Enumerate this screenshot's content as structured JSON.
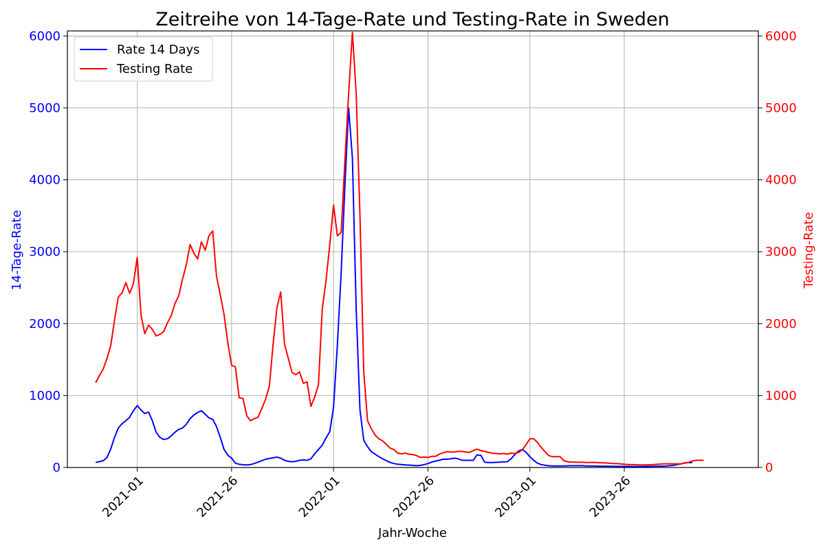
{
  "chart_data": {
    "type": "line",
    "title": "Zeitreihe von 14-Tage-Rate und Testing-Rate in Sweden",
    "xlabel": "Jahr-Woche",
    "ylabel_left": "14-Tage-Rate",
    "ylabel_right": "Testing-Rate",
    "x_ticks": [
      {
        "label": "2021-01",
        "week": 11
      },
      {
        "label": "2021-26",
        "week": 36
      },
      {
        "label": "2022-01",
        "week": 63
      },
      {
        "label": "2022-26",
        "week": 88
      },
      {
        "label": "2023-01",
        "week": 115
      },
      {
        "label": "2023-26",
        "week": 140
      }
    ],
    "xlim": [
      -7.5,
      175.5
    ],
    "ylim_left": [
      0,
      6070
    ],
    "ylim_right": [
      0,
      6070
    ],
    "y_ticks_left": [
      0,
      1000,
      2000,
      3000,
      4000,
      5000,
      6000
    ],
    "y_ticks_right": [
      0,
      1000,
      2000,
      3000,
      4000,
      5000,
      6000
    ],
    "grid": true,
    "legend_position": "upper-left",
    "colors": {
      "left_axis": "#0000ff",
      "right_axis": "#ff0000"
    },
    "series": [
      {
        "name": "Rate 14 Days",
        "axis": "left",
        "color": "#0000ff",
        "points": [
          [
            0,
            70
          ],
          [
            2,
            95
          ],
          [
            3,
            140
          ],
          [
            4,
            260
          ],
          [
            5,
            420
          ],
          [
            6,
            550
          ],
          [
            7,
            610
          ],
          [
            8,
            650
          ],
          [
            9,
            700
          ],
          [
            10,
            790
          ],
          [
            11,
            860
          ],
          [
            12,
            800
          ],
          [
            13,
            750
          ],
          [
            14,
            770
          ],
          [
            15,
            650
          ],
          [
            16,
            490
          ],
          [
            17,
            420
          ],
          [
            18,
            390
          ],
          [
            19,
            400
          ],
          [
            20,
            440
          ],
          [
            21,
            490
          ],
          [
            22,
            530
          ],
          [
            23,
            550
          ],
          [
            24,
            600
          ],
          [
            25,
            680
          ],
          [
            26,
            730
          ],
          [
            27,
            765
          ],
          [
            28,
            790
          ],
          [
            29,
            740
          ],
          [
            30,
            690
          ],
          [
            31,
            670
          ],
          [
            32,
            570
          ],
          [
            33,
            420
          ],
          [
            34,
            250
          ],
          [
            35,
            170
          ],
          [
            36,
            130
          ],
          [
            37,
            60
          ],
          [
            38,
            45
          ],
          [
            39,
            38
          ],
          [
            40,
            35
          ],
          [
            41,
            40
          ],
          [
            42,
            55
          ],
          [
            43,
            75
          ],
          [
            44,
            95
          ],
          [
            45,
            115
          ],
          [
            46,
            125
          ],
          [
            47,
            135
          ],
          [
            48,
            145
          ],
          [
            49,
            130
          ],
          [
            50,
            100
          ],
          [
            51,
            85
          ],
          [
            52,
            80
          ],
          [
            53,
            85
          ],
          [
            54,
            100
          ],
          [
            55,
            105
          ],
          [
            56,
            100
          ],
          [
            57,
            120
          ],
          [
            58,
            190
          ],
          [
            59,
            250
          ],
          [
            60,
            310
          ],
          [
            61,
            410
          ],
          [
            62,
            500
          ],
          [
            63,
            840
          ],
          [
            64,
            1700
          ],
          [
            65,
            2700
          ],
          [
            66,
            3900
          ],
          [
            67,
            5000
          ],
          [
            68,
            4300
          ],
          [
            69,
            2200
          ],
          [
            70,
            800
          ],
          [
            71,
            380
          ],
          [
            72,
            290
          ],
          [
            73,
            220
          ],
          [
            74,
            185
          ],
          [
            75,
            150
          ],
          [
            76,
            120
          ],
          [
            77,
            95
          ],
          [
            78,
            70
          ],
          [
            79,
            55
          ],
          [
            80,
            45
          ],
          [
            81,
            40
          ],
          [
            82,
            35
          ],
          [
            83,
            33
          ],
          [
            84,
            30
          ],
          [
            85,
            25
          ],
          [
            86,
            30
          ],
          [
            87,
            40
          ],
          [
            88,
            55
          ],
          [
            89,
            75
          ],
          [
            90,
            90
          ],
          [
            91,
            100
          ],
          [
            92,
            115
          ],
          [
            93,
            115
          ],
          [
            94,
            120
          ],
          [
            95,
            130
          ],
          [
            96,
            120
          ],
          [
            97,
            100
          ],
          [
            98,
            100
          ],
          [
            99,
            100
          ],
          [
            100,
            100
          ],
          [
            101,
            175
          ],
          [
            102,
            170
          ],
          [
            103,
            75
          ],
          [
            104,
            70
          ],
          [
            105,
            70
          ],
          [
            106,
            72
          ],
          [
            107,
            75
          ],
          [
            108,
            78
          ],
          [
            109,
            80
          ],
          [
            110,
            120
          ],
          [
            111,
            180
          ],
          [
            112,
            230
          ],
          [
            113,
            250
          ],
          [
            114,
            210
          ],
          [
            115,
            150
          ],
          [
            116,
            100
          ],
          [
            117,
            60
          ],
          [
            118,
            40
          ],
          [
            119,
            32
          ],
          [
            120,
            25
          ],
          [
            121,
            22
          ],
          [
            122,
            22
          ],
          [
            123,
            22
          ],
          [
            124,
            22
          ],
          [
            125,
            24
          ],
          [
            126,
            25
          ],
          [
            127,
            25
          ],
          [
            128,
            27
          ],
          [
            129,
            25
          ],
          [
            130,
            22
          ],
          [
            131,
            20
          ],
          [
            132,
            20
          ],
          [
            133,
            18
          ],
          [
            134,
            18
          ],
          [
            135,
            18
          ],
          [
            136,
            16
          ],
          [
            137,
            16
          ],
          [
            138,
            15
          ],
          [
            139,
            15
          ],
          [
            140,
            15
          ],
          [
            141,
            14
          ],
          [
            142,
            14
          ],
          [
            143,
            13
          ],
          [
            144,
            13
          ],
          [
            145,
            13
          ],
          [
            146,
            14
          ],
          [
            147,
            15
          ],
          [
            148,
            17
          ],
          [
            149,
            18
          ],
          [
            150,
            18
          ],
          [
            151,
            20
          ],
          [
            152,
            25
          ],
          [
            153,
            30
          ],
          [
            154,
            40
          ],
          [
            155,
            50
          ],
          [
            156,
            65
          ],
          [
            157,
            70
          ],
          [
            158,
            68
          ]
        ]
      },
      {
        "name": "Testing Rate",
        "axis": "right",
        "color": "#ff0000",
        "points": [
          [
            0,
            1180
          ],
          [
            1,
            1280
          ],
          [
            2,
            1370
          ],
          [
            3,
            1520
          ],
          [
            4,
            1700
          ],
          [
            5,
            2050
          ],
          [
            6,
            2370
          ],
          [
            7,
            2430
          ],
          [
            8,
            2570
          ],
          [
            9,
            2420
          ],
          [
            10,
            2560
          ],
          [
            11,
            2920
          ],
          [
            12,
            2120
          ],
          [
            13,
            1860
          ],
          [
            14,
            1980
          ],
          [
            15,
            1920
          ],
          [
            16,
            1830
          ],
          [
            17,
            1850
          ],
          [
            18,
            1890
          ],
          [
            19,
            2010
          ],
          [
            20,
            2110
          ],
          [
            21,
            2280
          ],
          [
            22,
            2390
          ],
          [
            23,
            2620
          ],
          [
            24,
            2820
          ],
          [
            25,
            3100
          ],
          [
            26,
            2980
          ],
          [
            27,
            2900
          ],
          [
            28,
            3140
          ],
          [
            29,
            3020
          ],
          [
            30,
            3220
          ],
          [
            31,
            3290
          ],
          [
            32,
            2660
          ],
          [
            33,
            2400
          ],
          [
            34,
            2130
          ],
          [
            35,
            1730
          ],
          [
            36,
            1420
          ],
          [
            37,
            1400
          ],
          [
            38,
            970
          ],
          [
            39,
            960
          ],
          [
            40,
            720
          ],
          [
            41,
            650
          ],
          [
            42,
            680
          ],
          [
            43,
            700
          ],
          [
            44,
            820
          ],
          [
            45,
            950
          ],
          [
            46,
            1130
          ],
          [
            47,
            1720
          ],
          [
            48,
            2220
          ],
          [
            49,
            2440
          ],
          [
            50,
            1720
          ],
          [
            51,
            1520
          ],
          [
            52,
            1320
          ],
          [
            53,
            1290
          ],
          [
            54,
            1330
          ],
          [
            55,
            1170
          ],
          [
            56,
            1190
          ],
          [
            57,
            850
          ],
          [
            58,
            980
          ],
          [
            59,
            1150
          ],
          [
            60,
            2200
          ],
          [
            61,
            2600
          ],
          [
            62,
            3100
          ],
          [
            63,
            3650
          ],
          [
            64,
            3220
          ],
          [
            65,
            3270
          ],
          [
            66,
            4250
          ],
          [
            67,
            5200
          ],
          [
            68,
            6050
          ],
          [
            69,
            5200
          ],
          [
            70,
            3500
          ],
          [
            71,
            1330
          ],
          [
            72,
            650
          ],
          [
            73,
            540
          ],
          [
            74,
            450
          ],
          [
            75,
            400
          ],
          [
            76,
            370
          ],
          [
            77,
            320
          ],
          [
            78,
            270
          ],
          [
            79,
            250
          ],
          [
            80,
            200
          ],
          [
            81,
            190
          ],
          [
            82,
            200
          ],
          [
            83,
            185
          ],
          [
            84,
            180
          ],
          [
            85,
            165
          ],
          [
            86,
            140
          ],
          [
            87,
            145
          ],
          [
            88,
            140
          ],
          [
            89,
            155
          ],
          [
            90,
            155
          ],
          [
            91,
            185
          ],
          [
            92,
            205
          ],
          [
            93,
            220
          ],
          [
            94,
            215
          ],
          [
            95,
            215
          ],
          [
            96,
            225
          ],
          [
            97,
            225
          ],
          [
            98,
            215
          ],
          [
            99,
            210
          ],
          [
            100,
            235
          ],
          [
            101,
            255
          ],
          [
            102,
            235
          ],
          [
            103,
            225
          ],
          [
            104,
            210
          ],
          [
            105,
            200
          ],
          [
            106,
            195
          ],
          [
            107,
            190
          ],
          [
            108,
            195
          ],
          [
            109,
            185
          ],
          [
            110,
            200
          ],
          [
            111,
            195
          ],
          [
            112,
            210
          ],
          [
            113,
            245
          ],
          [
            114,
            320
          ],
          [
            115,
            400
          ],
          [
            116,
            400
          ],
          [
            117,
            350
          ],
          [
            118,
            280
          ],
          [
            119,
            220
          ],
          [
            120,
            165
          ],
          [
            121,
            150
          ],
          [
            122,
            150
          ],
          [
            123,
            150
          ],
          [
            124,
            95
          ],
          [
            125,
            80
          ],
          [
            126,
            75
          ],
          [
            127,
            75
          ],
          [
            128,
            72
          ],
          [
            129,
            75
          ],
          [
            130,
            70
          ],
          [
            131,
            70
          ],
          [
            132,
            72
          ],
          [
            133,
            68
          ],
          [
            134,
            65
          ],
          [
            135,
            65
          ],
          [
            136,
            60
          ],
          [
            137,
            55
          ],
          [
            138,
            55
          ],
          [
            139,
            50
          ],
          [
            140,
            45
          ],
          [
            141,
            40
          ],
          [
            142,
            40
          ],
          [
            143,
            38
          ],
          [
            144,
            36
          ],
          [
            145,
            35
          ],
          [
            146,
            35
          ],
          [
            147,
            38
          ],
          [
            148,
            42
          ],
          [
            149,
            45
          ],
          [
            150,
            50
          ],
          [
            151,
            52
          ],
          [
            152,
            52
          ],
          [
            153,
            52
          ],
          [
            154,
            50
          ],
          [
            155,
            52
          ],
          [
            156,
            60
          ],
          [
            157,
            70
          ],
          [
            158,
            90
          ],
          [
            159,
            100
          ],
          [
            160,
            100
          ],
          [
            161,
            100
          ]
        ]
      }
    ]
  }
}
